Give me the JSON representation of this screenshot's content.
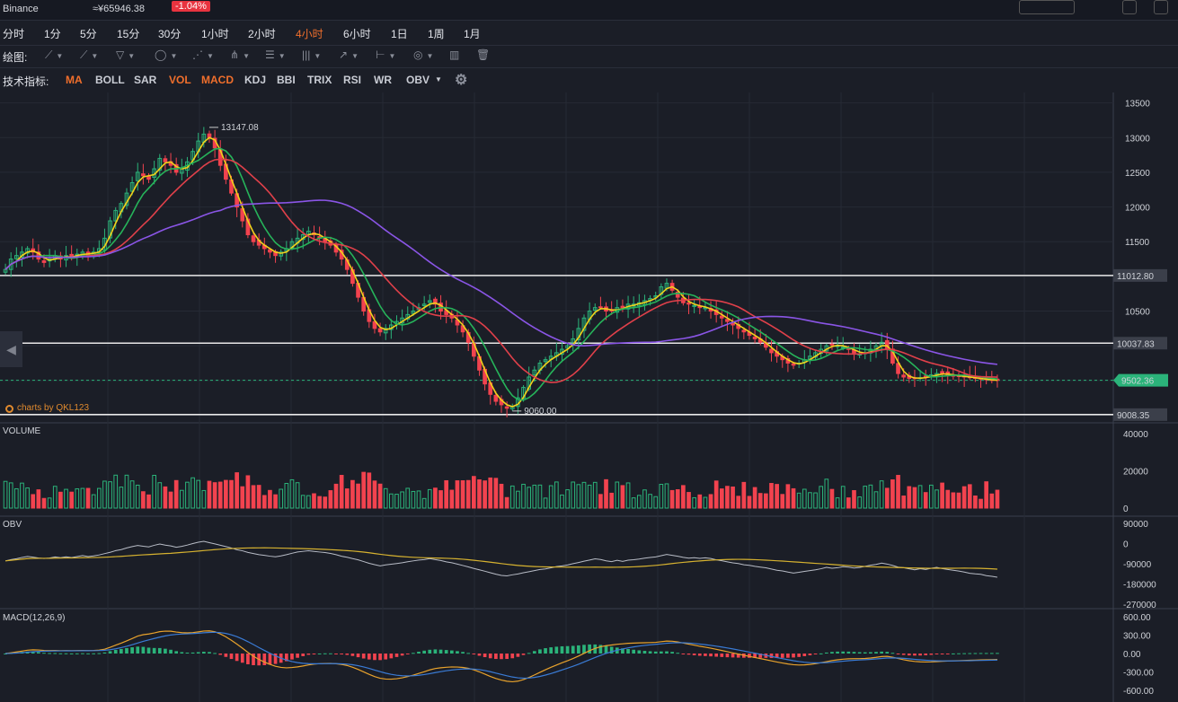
{
  "topbar": {
    "exchange": "Binance",
    "price_cny": "≈¥65946.38",
    "change": "-1.04%"
  },
  "intervals": [
    {
      "label": "分时",
      "active": false
    },
    {
      "label": "1分",
      "active": false
    },
    {
      "label": "5分",
      "active": false
    },
    {
      "label": "15分",
      "active": false
    },
    {
      "label": "30分",
      "active": false
    },
    {
      "label": "1小时",
      "active": false
    },
    {
      "label": "2小时",
      "active": false
    },
    {
      "label": "4小时",
      "active": true
    },
    {
      "label": "6小时",
      "active": false
    },
    {
      "label": "1日",
      "active": false
    },
    {
      "label": "1周",
      "active": false
    },
    {
      "label": "1月",
      "active": false
    }
  ],
  "drawing": {
    "label": "绘图:",
    "tools": [
      "line-tool-icon",
      "ray-tool-icon",
      "channel-tool-icon",
      "ellipse-tool-icon",
      "zigzag-tool-icon",
      "pitchfork-tool-icon",
      "fib-tool-icon",
      "gann-tool-icon",
      "arrow-tool-icon",
      "range-tool-icon",
      "comment-tool-icon",
      "measure-tool-icon",
      "trash-icon"
    ]
  },
  "indicators": {
    "label": "技术指标:",
    "items": [
      {
        "label": "MA",
        "active": true
      },
      {
        "label": "BOLL",
        "active": false
      },
      {
        "label": "SAR",
        "active": false
      },
      {
        "label": "VOL",
        "active": true
      },
      {
        "label": "MACD",
        "active": true
      },
      {
        "label": "KDJ",
        "active": false
      },
      {
        "label": "BBI",
        "active": false
      },
      {
        "label": "TRIX",
        "active": false
      },
      {
        "label": "RSI",
        "active": false
      },
      {
        "label": "WR",
        "active": false
      },
      {
        "label": "OBV",
        "active": false
      }
    ],
    "settings_icon": "gear-icon"
  },
  "watermark": "charts by QKL123",
  "chart_data": {
    "type": "candlestick",
    "colors": {
      "up": "#2bb37a",
      "down": "#f2434f",
      "ma_yellow": "#f2d21b",
      "ma_green": "#26b35a",
      "ma_red": "#e0404a",
      "ma_purple": "#8a55e6",
      "price_tag": "#2bb37a"
    },
    "y_axis": {
      "ticks": [
        13500,
        13000,
        12500,
        12000,
        11500,
        11000,
        10500,
        10000,
        9500,
        9000
      ],
      "labels": [
        "13500",
        "13000",
        "12500",
        "12000",
        "11500",
        "",
        "10500",
        "",
        "",
        ""
      ]
    },
    "price_range": [
      8890,
      13650
    ],
    "horizontal_lines": [
      {
        "value": 11012.8,
        "label": "11012.80"
      },
      {
        "value": 10037.83,
        "label": "10037.83"
      },
      {
        "value": 9008.35,
        "label": "9008.35"
      }
    ],
    "last_price": {
      "value": 9502.36,
      "label": "9502.36"
    },
    "high_marker": {
      "value": 13147.08,
      "label": "13147.08",
      "index": 37
    },
    "low_marker": {
      "value": 9060.0,
      "label": "9060.00",
      "index": 92
    },
    "closes": [
      11100,
      11250,
      11300,
      11350,
      11400,
      11350,
      11250,
      11200,
      11250,
      11300,
      11250,
      11300,
      11280,
      11320,
      11350,
      11300,
      11350,
      11400,
      11550,
      11800,
      11950,
      12050,
      12200,
      12350,
      12500,
      12450,
      12400,
      12550,
      12700,
      12650,
      12600,
      12500,
      12550,
      12650,
      12800,
      12950,
      13050,
      13000,
      12850,
      12600,
      12400,
      12200,
      12000,
      11800,
      11600,
      11500,
      11450,
      11400,
      11350,
      11300,
      11350,
      11400,
      11500,
      11550,
      11600,
      11650,
      11600,
      11550,
      11500,
      11450,
      11350,
      11250,
      11100,
      10900,
      10700,
      10500,
      10350,
      10250,
      10200,
      10250,
      10300,
      10350,
      10400,
      10450,
      10500,
      10550,
      10600,
      10650,
      10600,
      10500,
      10450,
      10400,
      10300,
      10200,
      10050,
      9850,
      9650,
      9450,
      9300,
      9200,
      9150,
      9100,
      9120,
      9250,
      9400,
      9550,
      9650,
      9750,
      9800,
      9850,
      9900,
      9950,
      10000,
      10100,
      10250,
      10400,
      10500,
      10550,
      10550,
      10500,
      10500,
      10550,
      10550,
      10600,
      10600,
      10620,
      10650,
      10680,
      10720,
      10850,
      10900,
      10800,
      10700,
      10620,
      10600,
      10580,
      10550,
      10550,
      10500,
      10450,
      10400,
      10350,
      10300,
      10250,
      10200,
      10150,
      10100,
      10050,
      9980,
      9900,
      9850,
      9800,
      9750,
      9720,
      9750,
      9800,
      9850,
      9900,
      9950,
      10000,
      10020,
      10000,
      9980,
      9950,
      9900,
      9880,
      9900,
      9950,
      10000,
      10050,
      9950,
      9750,
      9600,
      9550,
      9530,
      9530,
      9540,
      9550,
      9580,
      9600,
      9600,
      9580,
      9570,
      9560,
      9550,
      9540,
      9530,
      9520,
      9510,
      9500,
      9502
    ],
    "volume": {
      "ticks": [
        40000,
        20000,
        0
      ],
      "labels": [
        "40000",
        "20000",
        "0"
      ]
    },
    "obv": {
      "title": "OBV",
      "ticks": [
        90000,
        0,
        -90000,
        -180000,
        -270000
      ],
      "labels": [
        "90000",
        "0",
        "-90000",
        "-180000",
        "-270000"
      ]
    },
    "macd": {
      "title": "MACD(12,26,9)",
      "ticks": [
        600,
        300,
        0,
        -300,
        -600
      ],
      "labels": [
        "600.00",
        "300.00",
        "0.00",
        "-300.00",
        "-600.00"
      ]
    }
  }
}
